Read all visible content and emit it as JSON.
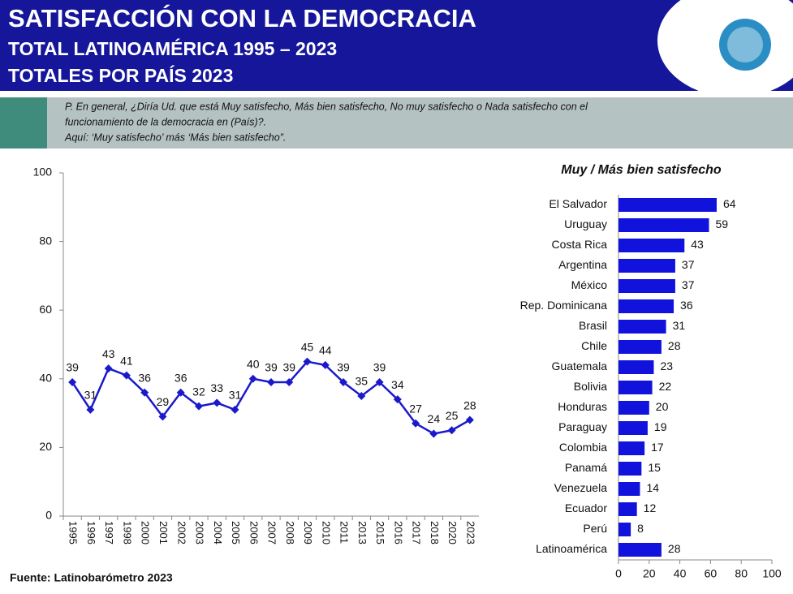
{
  "header": {
    "title": "SATISFACCIÓN CON LA DEMOCRACIA",
    "subtitle_1": "TOTAL LATINOAMÉRICA 1995 – 2023",
    "subtitle_2": "TOTALES POR PAÍS 2023"
  },
  "question": {
    "line_1": "P. En general, ¿Diría Ud. que está Muy satisfecho, Más bien satisfecho, No muy satisfecho o Nada satisfecho con el",
    "line_2": "funcionamiento de la democracia en (País)?.",
    "line_3": "Aquí: ‘Muy satisfecho’ más ‘Más bien satisfecho”."
  },
  "source": "Fuente: Latinobarómetro 2023",
  "chart_data": [
    {
      "type": "line",
      "color": "#1a1acc",
      "categories": [
        "1995",
        "1996",
        "1997",
        "1998",
        "2000",
        "2001",
        "2002",
        "2003",
        "2004",
        "2005",
        "2006",
        "2007",
        "2008",
        "2009",
        "2010",
        "2011",
        "2013",
        "2015",
        "2016",
        "2017",
        "2018",
        "2020",
        "2023"
      ],
      "values": [
        39,
        31,
        43,
        41,
        36,
        29,
        36,
        32,
        33,
        31,
        40,
        39,
        39,
        45,
        44,
        39,
        35,
        39,
        34,
        27,
        24,
        25,
        28
      ],
      "ylim": [
        0,
        100
      ],
      "yticks": [
        0,
        20,
        40,
        60,
        80,
        100
      ]
    },
    {
      "type": "hbar",
      "title": "Muy / Más bien satisfecho",
      "color": "#1212dd",
      "categories": [
        "El Salvador",
        "Uruguay",
        "Costa Rica",
        "Argentina",
        "México",
        "Rep. Dominicana",
        "Brasil",
        "Chile",
        "Guatemala",
        "Bolivia",
        "Honduras",
        "Paraguay",
        "Colombia",
        "Panamá",
        "Venezuela",
        "Ecuador",
        "Perú",
        "Latinoamérica"
      ],
      "values": [
        64,
        59,
        43,
        37,
        37,
        36,
        31,
        28,
        23,
        22,
        20,
        19,
        17,
        15,
        14,
        12,
        8,
        28
      ],
      "xlim": [
        0,
        100
      ],
      "xticks": [
        0,
        20,
        40,
        60,
        80,
        100
      ]
    }
  ]
}
